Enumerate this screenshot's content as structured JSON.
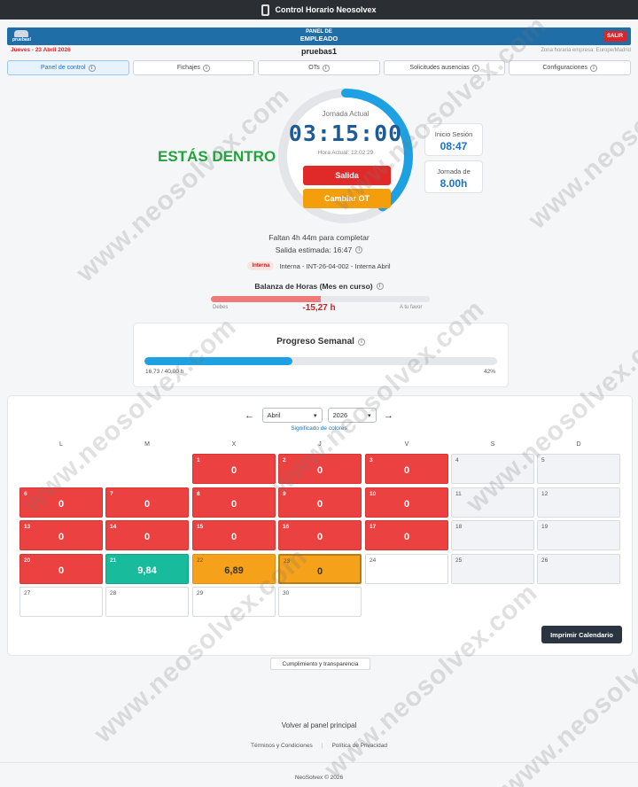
{
  "app": {
    "title": "Control Horario Neosolvex"
  },
  "header": {
    "brand_label": "pruebasl",
    "panel_line1": "PANEL DE",
    "panel_line2": "EMPLEADO",
    "salir_label": "SALIR",
    "date_text": "Jueves - 23 Abril 2026",
    "username": "pruebas1",
    "timezone": "Zona horaria empresa: Europe/Madrid"
  },
  "tabs": [
    {
      "label": "Panel de control",
      "active": true
    },
    {
      "label": "Fichajes",
      "active": false
    },
    {
      "label": "OTs",
      "active": false
    },
    {
      "label": "Solicitudes ausencias",
      "active": false
    },
    {
      "label": "Configuraciones",
      "active": false
    }
  ],
  "status": {
    "estas_dentro": "ESTÁS DENTRO",
    "jornada_label": "Jornada Actual",
    "timer": "03:15:00",
    "hora_actual": "Hora Actual: 12:02:29",
    "salida_label": "Salida",
    "cambiar_ot_label": "Cambiar OT",
    "ring_progress": 0.4
  },
  "side_cards": {
    "inicio_label": "Inicio Sesión",
    "inicio_value": "08:47",
    "jornada_de_label": "Jornada de",
    "jornada_de_value": "8.00h"
  },
  "summary": {
    "faltan": "Faltan 4h 44m para completar",
    "salida_estimada": "Salida estimada: 16:47",
    "ot_badge": "Interna",
    "ot_text": "Interna - INT-26-04-002 - Interna Abril"
  },
  "balanza": {
    "title": "Balanza de Horas (Mes en curso)",
    "debes": "Debes",
    "a_tu_favor": "A tu favor",
    "value": "-15,27 h",
    "deficit_fraction": 0.5
  },
  "progreso": {
    "title": "Progreso Semanal",
    "left_text": "16,73 / 40,00 h",
    "right_text": "42%",
    "fraction": 0.42
  },
  "calendar": {
    "month": "Abril",
    "year": "2026",
    "prev": "←",
    "next": "→",
    "significado": "Significado de colores",
    "weekdays": [
      "L",
      "M",
      "X",
      "J",
      "V",
      "S",
      "D"
    ],
    "days": [
      {
        "d": "1",
        "h": "0"
      },
      {
        "d": "2",
        "h": "0"
      },
      {
        "d": "3",
        "h": "0"
      },
      {
        "d": "4",
        "h": ""
      },
      {
        "d": "5",
        "h": ""
      },
      {
        "d": "6",
        "h": "0"
      },
      {
        "d": "7",
        "h": "0"
      },
      {
        "d": "8",
        "h": "0"
      },
      {
        "d": "9",
        "h": "0"
      },
      {
        "d": "10",
        "h": "0"
      },
      {
        "d": "11",
        "h": ""
      },
      {
        "d": "12",
        "h": ""
      },
      {
        "d": "13",
        "h": "0"
      },
      {
        "d": "14",
        "h": "0"
      },
      {
        "d": "15",
        "h": "0"
      },
      {
        "d": "16",
        "h": "0"
      },
      {
        "d": "17",
        "h": "0"
      },
      {
        "d": "18",
        "h": ""
      },
      {
        "d": "19",
        "h": ""
      },
      {
        "d": "20",
        "h": "0"
      },
      {
        "d": "21",
        "h": "9,84"
      },
      {
        "d": "22",
        "h": "6,89"
      },
      {
        "d": "23",
        "h": "0"
      },
      {
        "d": "24",
        "h": ""
      },
      {
        "d": "25",
        "h": ""
      },
      {
        "d": "26",
        "h": ""
      },
      {
        "d": "27",
        "h": ""
      },
      {
        "d": "28",
        "h": ""
      },
      {
        "d": "29",
        "h": ""
      },
      {
        "d": "30",
        "h": ""
      }
    ],
    "imprimir_label": "Imprimir Calendario"
  },
  "footer": {
    "cumplimiento": "Cumplimiento y transparencia",
    "volver": "Volver al panel principal",
    "terminos": "Términos y Condiciones",
    "separator": "|",
    "privacidad": "Política de Privacidad",
    "copyright": "NeoSolvex © 2026"
  },
  "watermark_text": "www.neosolvex.com",
  "colors": {
    "accent": "#1a73c9",
    "dentro_green": "#22a33c",
    "danger_red": "#e02a2a",
    "ot_orange": "#f59e0b",
    "ring_blue": "#1da1e2"
  }
}
